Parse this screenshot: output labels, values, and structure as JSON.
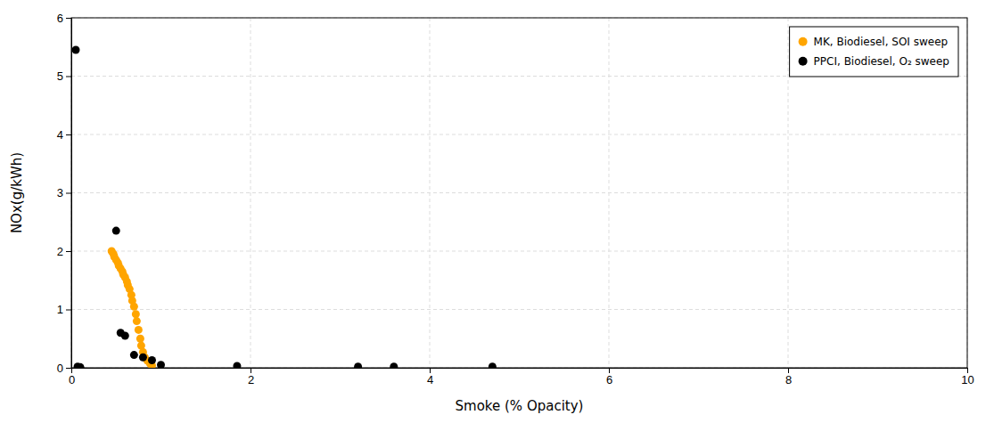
{
  "chart_data": {
    "type": "scatter",
    "xlabel": "Smoke (% Opacity)",
    "ylabel": "NOx(g/kWh)",
    "series": [
      {
        "name": "MK, Biodiesel, SOI sweep",
        "color": "#FFA500",
        "marker": "circle",
        "x": [
          0.45,
          0.47,
          0.48,
          0.5,
          0.52,
          0.53,
          0.55,
          0.57,
          0.58,
          0.6,
          0.62,
          0.63,
          0.65,
          0.67,
          0.68,
          0.7,
          0.72,
          0.73,
          0.75,
          0.77,
          0.78,
          0.8,
          0.82,
          0.85,
          0.88,
          0.9
        ],
        "values": [
          2.0,
          1.95,
          1.9,
          1.85,
          1.8,
          1.75,
          1.7,
          1.65,
          1.6,
          1.55,
          1.48,
          1.42,
          1.35,
          1.25,
          1.15,
          1.05,
          0.92,
          0.8,
          0.65,
          0.5,
          0.38,
          0.27,
          0.18,
          0.12,
          0.07,
          0.04
        ]
      },
      {
        "name": "PPCI, Biodiesel, O₂ sweep",
        "color": "#000000",
        "marker": "circle",
        "x": [
          0.05,
          0.07,
          0.1,
          0.5,
          0.55,
          0.6,
          0.7,
          0.8,
          0.9,
          1.0,
          1.85,
          3.2,
          3.6,
          4.7
        ],
        "values": [
          5.45,
          0.02,
          0.01,
          2.35,
          0.6,
          0.55,
          0.22,
          0.18,
          0.13,
          0.05,
          0.03,
          0.02,
          0.02,
          0.02
        ]
      }
    ],
    "xlim": [
      0,
      10
    ],
    "ylim": [
      0,
      6
    ],
    "xticks": [
      0,
      2,
      4,
      6,
      8,
      10
    ],
    "yticks": [
      0,
      1,
      2,
      3,
      4,
      5,
      6
    ],
    "grid": true,
    "legend": "upper right"
  }
}
